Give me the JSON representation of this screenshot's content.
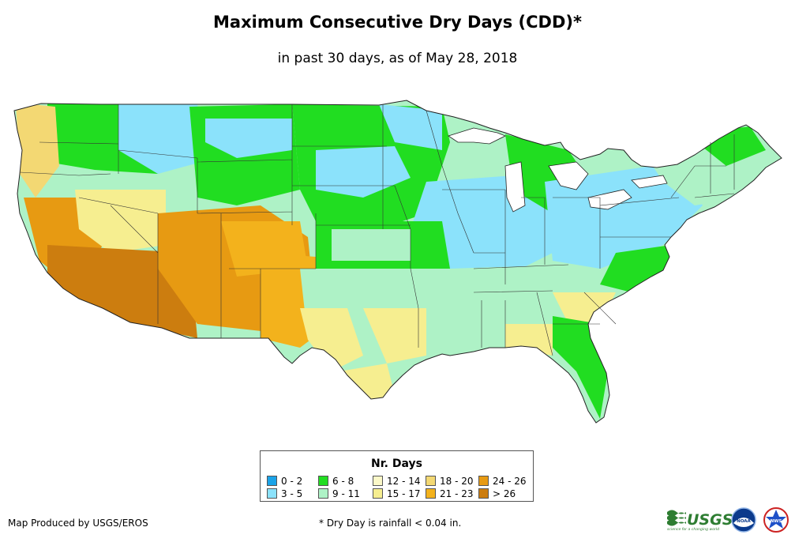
{
  "title": "Maximum Consecutive Dry Days (CDD)*",
  "subtitle": "in past 30 days, as of May 28, 2018",
  "legend": {
    "title": "Nr. Days",
    "items": [
      {
        "label": "0 - 2",
        "color": "#1aa3e8"
      },
      {
        "label": "3 - 5",
        "color": "#8be2fb"
      },
      {
        "label": "6 - 8",
        "color": "#21dd21"
      },
      {
        "label": "9 - 11",
        "color": "#aef2c6"
      },
      {
        "label": "12 - 14",
        "color": "#fbf8c8"
      },
      {
        "label": "15 - 17",
        "color": "#f6ee90"
      },
      {
        "label": "18 - 20",
        "color": "#f3d873"
      },
      {
        "label": "21 - 23",
        "color": "#f3b21c"
      },
      {
        "label": "24 - 26",
        "color": "#e79a12"
      },
      {
        "label": "> 26",
        "color": "#cc7d0f"
      }
    ]
  },
  "credit": "Map Produced by USGS/EROS",
  "footnote": "* Dry Day is rainfall < 0.04 in.",
  "logos": {
    "usgs": "USGS",
    "usgs_tagline": "science for a changing world",
    "noaa": "NOAA",
    "nws": "NWS"
  }
}
